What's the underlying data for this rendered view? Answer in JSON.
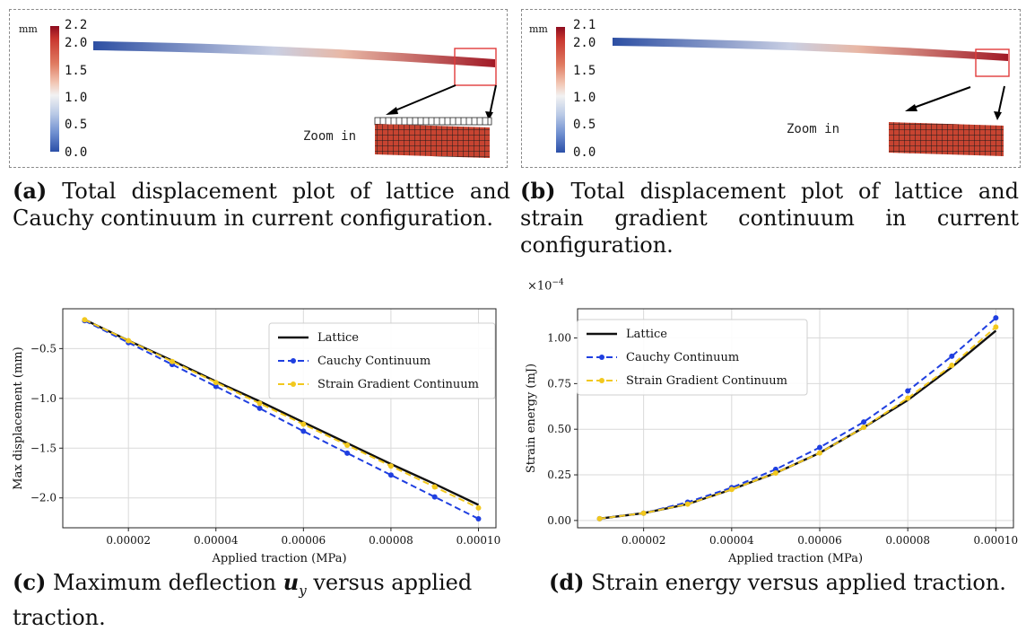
{
  "panel_a": {
    "unit": "mm",
    "cbar_ticks": [
      "2.2",
      "2.0",
      "1.5",
      "1.0",
      "0.5",
      "0.0"
    ],
    "zoom_label": "Zoom in",
    "caption_tag": "(a)",
    "caption_text": "Total displacement plot of lattice and Cauchy continuum in current configuration."
  },
  "panel_b": {
    "unit": "mm",
    "cbar_ticks": [
      "2.1",
      "2.0",
      "1.5",
      "1.0",
      "0.5",
      "0.0"
    ],
    "zoom_label": "Zoom in",
    "caption_tag": "(b)",
    "caption_text": "Total displacement plot of lattice and strain gradient continuum in current configuration."
  },
  "caption_c": {
    "tag": "(c)",
    "text_before": "Maximum deflection ",
    "symbol": "u",
    "subscript": "y",
    "text_after": " versus applied traction."
  },
  "caption_d": {
    "tag": "(d)",
    "text": "Strain energy versus applied traction."
  },
  "colors": {
    "lattice": "#111111",
    "cauchy": "#1f3fe0",
    "strain_gradient": "#f2c81e",
    "cmap_high": "#b2182b",
    "cmap_mid": "#f2f2f2",
    "cmap_low": "#2b4fa8"
  },
  "chart_data": [
    {
      "type": "line",
      "xlabel": "Applied traction (MPa)",
      "ylabel": "Max displacement (mm)",
      "xlim": [
        5e-06,
        0.000104
      ],
      "ylim": [
        -2.3,
        -0.1
      ],
      "xticks": [
        2e-05,
        4e-05,
        6e-05,
        8e-05,
        0.0001
      ],
      "xtick_labels": [
        "0.00002",
        "0.00004",
        "0.00006",
        "0.00008",
        "0.00010"
      ],
      "yticks": [
        -0.5,
        -1.0,
        -1.5,
        -2.0
      ],
      "ytick_labels": [
        "−0.5",
        "−1.0",
        "−1.5",
        "−2.0"
      ],
      "grid": true,
      "legend_position": "top-right",
      "x": [
        1e-05,
        2e-05,
        3e-05,
        4e-05,
        5e-05,
        6e-05,
        7e-05,
        8e-05,
        9e-05,
        0.0001
      ],
      "series": [
        {
          "name": "Lattice",
          "style": "solid",
          "values": [
            -0.21,
            -0.42,
            -0.62,
            -0.83,
            -1.03,
            -1.24,
            -1.45,
            -1.66,
            -1.86,
            -2.07
          ]
        },
        {
          "name": "Cauchy Continuum",
          "style": "dashed-dot",
          "values": [
            -0.22,
            -0.44,
            -0.66,
            -0.88,
            -1.1,
            -1.33,
            -1.55,
            -1.77,
            -1.99,
            -2.21
          ]
        },
        {
          "name": "Strain Gradient Continuum",
          "style": "dashed-dot",
          "values": [
            -0.21,
            -0.42,
            -0.63,
            -0.84,
            -1.05,
            -1.26,
            -1.47,
            -1.68,
            -1.89,
            -2.1
          ]
        }
      ]
    },
    {
      "type": "line",
      "xlabel": "Applied traction (MPa)",
      "ylabel": "Strain energy (mJ)",
      "scale_label": "×10",
      "scale_exponent": "−4",
      "xlim": [
        5e-06,
        0.000104
      ],
      "ylim": [
        -0.04,
        1.16
      ],
      "xticks": [
        2e-05,
        4e-05,
        6e-05,
        8e-05,
        0.0001
      ],
      "xtick_labels": [
        "0.00002",
        "0.00004",
        "0.00006",
        "0.00008",
        "0.00010"
      ],
      "yticks": [
        0.0,
        0.25,
        0.5,
        0.75,
        1.0
      ],
      "ytick_labels": [
        "0.00",
        "0.25",
        "0.50",
        "0.75",
        "1.00"
      ],
      "grid": true,
      "legend_position": "top-left",
      "x": [
        1e-05,
        2e-05,
        3e-05,
        4e-05,
        5e-05,
        6e-05,
        7e-05,
        8e-05,
        9e-05,
        0.0001
      ],
      "series": [
        {
          "name": "Lattice",
          "style": "solid",
          "values": [
            0.01,
            0.04,
            0.09,
            0.17,
            0.26,
            0.37,
            0.51,
            0.66,
            0.84,
            1.04
          ]
        },
        {
          "name": "Cauchy Continuum",
          "style": "dashed-dot",
          "values": [
            0.01,
            0.04,
            0.1,
            0.18,
            0.28,
            0.4,
            0.54,
            0.71,
            0.9,
            1.11
          ]
        },
        {
          "name": "Strain Gradient Continuum",
          "style": "dashed-dot",
          "values": [
            0.01,
            0.04,
            0.09,
            0.17,
            0.26,
            0.37,
            0.51,
            0.67,
            0.85,
            1.06
          ]
        }
      ]
    }
  ]
}
